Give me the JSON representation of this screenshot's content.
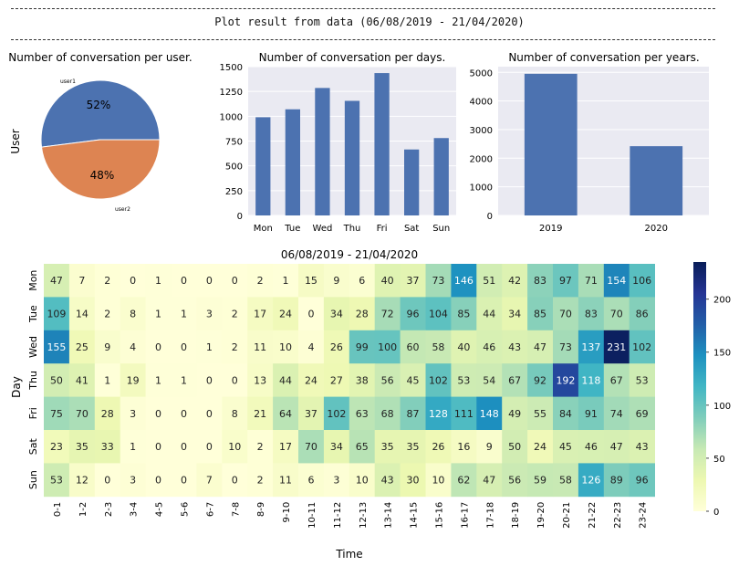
{
  "header": {
    "title": "Plot result from data (06/08/2019 - 21/04/2020)"
  },
  "colors": {
    "bar": "#4c72b0",
    "pie_user1": "#4c72b0",
    "pie_user2": "#dd8452",
    "panel_bg": "#eaeaf2",
    "cmap": "YlGnBu"
  },
  "chart_data": [
    {
      "type": "pie",
      "title": "Number of conversation per user.",
      "ylabel": "User",
      "labels": [
        "user1",
        "user2"
      ],
      "values": [
        52,
        48
      ],
      "autopct": [
        "52%",
        "48%"
      ]
    },
    {
      "type": "bar",
      "title": "Number of conversation per days.",
      "categories": [
        "Mon",
        "Tue",
        "Wed",
        "Thu",
        "Fri",
        "Sat",
        "Sun"
      ],
      "values": [
        990,
        1070,
        1285,
        1155,
        1435,
        665,
        780
      ],
      "ylim": [
        0,
        1500
      ],
      "yticks": [
        "0",
        "250",
        "500",
        "750",
        "1000",
        "1250",
        "1500"
      ]
    },
    {
      "type": "bar",
      "title": "Number of conversation per years.",
      "categories": [
        "2019",
        "2020"
      ],
      "values": [
        4950,
        2420
      ],
      "ylim": [
        0,
        5200
      ],
      "yticks": [
        "0",
        "1000",
        "2000",
        "3000",
        "4000",
        "5000"
      ]
    },
    {
      "type": "heatmap",
      "title": "06/08/2019 - 21/04/2020",
      "xlabel": "Time",
      "ylabel": "Day",
      "rows": [
        "Mon",
        "Tue",
        "Wed",
        "Thu",
        "Fri",
        "Sat",
        "Sun"
      ],
      "columns": [
        "0-1",
        "1-2",
        "2-3",
        "3-4",
        "4-5",
        "5-6",
        "6-7",
        "7-8",
        "8-9",
        "9-10",
        "10-11",
        "11-12",
        "12-13",
        "13-14",
        "14-15",
        "15-16",
        "16-17",
        "17-18",
        "18-19",
        "19-20",
        "20-21",
        "21-22",
        "22-23",
        "23-24"
      ],
      "values": [
        [
          47,
          7,
          2,
          0,
          1,
          0,
          0,
          0,
          2,
          1,
          15,
          9,
          6,
          40,
          37,
          73,
          146,
          51,
          42,
          83,
          97,
          71,
          154,
          106
        ],
        [
          109,
          14,
          2,
          8,
          1,
          1,
          3,
          2,
          17,
          24,
          0,
          34,
          28,
          72,
          96,
          104,
          85,
          44,
          34,
          85,
          70,
          83,
          70,
          86
        ],
        [
          155,
          25,
          9,
          4,
          0,
          0,
          1,
          2,
          11,
          10,
          4,
          26,
          99,
          100,
          60,
          58,
          40,
          46,
          43,
          47,
          73,
          137,
          231,
          102
        ],
        [
          50,
          41,
          1,
          19,
          1,
          1,
          0,
          0,
          13,
          44,
          24,
          27,
          38,
          56,
          45,
          102,
          53,
          54,
          67,
          92,
          192,
          118,
          67,
          53
        ],
        [
          75,
          70,
          28,
          3,
          0,
          0,
          0,
          8,
          21,
          64,
          37,
          102,
          63,
          68,
          87,
          128,
          111,
          148,
          49,
          55,
          84,
          91,
          74,
          69
        ],
        [
          23,
          35,
          33,
          1,
          0,
          0,
          0,
          10,
          2,
          17,
          70,
          34,
          65,
          35,
          35,
          26,
          16,
          9,
          50,
          24,
          45,
          46,
          47,
          43
        ],
        [
          53,
          12,
          0,
          3,
          0,
          0,
          7,
          0,
          2,
          11,
          6,
          3,
          10,
          43,
          30,
          10,
          62,
          47,
          56,
          59,
          58,
          126,
          89,
          96
        ]
      ],
      "colorbar": {
        "ticks": [
          "0",
          "50",
          "100",
          "150",
          "200"
        ],
        "max": 235
      }
    }
  ]
}
